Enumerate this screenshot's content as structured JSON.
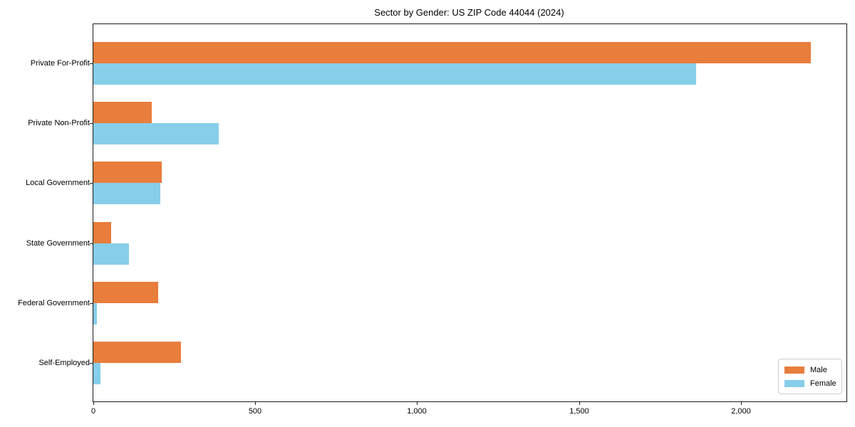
{
  "chart_data": {
    "type": "bar",
    "orientation": "horizontal",
    "title": "Sector by Gender: US ZIP Code 44044 (2024)",
    "categories": [
      "Private For-Profit",
      "Private Non-Profit",
      "Local Government",
      "State Government",
      "Federal Government",
      "Self-Employed"
    ],
    "series": [
      {
        "name": "Male",
        "color": "#E87D3C",
        "values": [
          2215,
          180,
          212,
          55,
          200,
          270
        ]
      },
      {
        "name": "Female",
        "color": "#87CEEB",
        "values": [
          1862,
          388,
          207,
          110,
          12,
          22
        ]
      }
    ],
    "xlabel": "",
    "ylabel": "",
    "xlim": [
      0,
      2326
    ],
    "xticks": [
      0,
      500,
      1000,
      1500,
      2000
    ],
    "xtick_labels": [
      "0",
      "500",
      "1,000",
      "1,500",
      "2,000"
    ],
    "grid": false,
    "legend_position": "lower right",
    "axis_color": "#1a1a1a",
    "background_color": "#ffffff"
  }
}
